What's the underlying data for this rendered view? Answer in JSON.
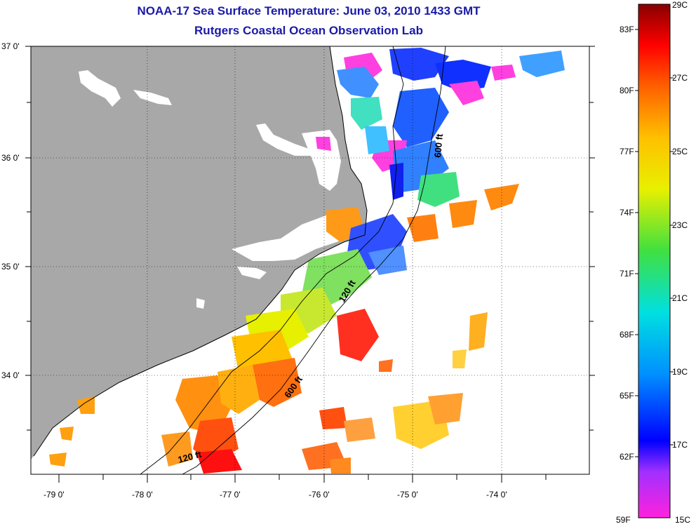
{
  "header": {
    "title": "NOAA-17 Sea Surface Temperature:  June 03, 2010 1433 GMT",
    "subtitle": "Rutgers Coastal Ocean Observation Lab"
  },
  "map": {
    "latitude_labels": [
      "37 0'",
      "36 0'",
      "35 0'",
      "34 0'"
    ],
    "longitude_labels": [
      "-79 0'",
      "-78 0'",
      "-77 0'",
      "-76 0'",
      "-75 0'",
      "-74 0'"
    ],
    "contour_labels": [
      "600 ft",
      "120 ft",
      "600 ft",
      "120 ft"
    ],
    "land_color": "#a8a8a8",
    "background_color": "#ffffff"
  },
  "colorbar": {
    "celsius_labels": [
      "29C",
      "27C",
      "25C",
      "23C",
      "21C",
      "19C",
      "17C",
      "15C"
    ],
    "fahrenheit_labels": [
      "83F",
      "80F",
      "77F",
      "74F",
      "71F",
      "68F",
      "65F",
      "62F",
      "59F"
    ]
  }
}
